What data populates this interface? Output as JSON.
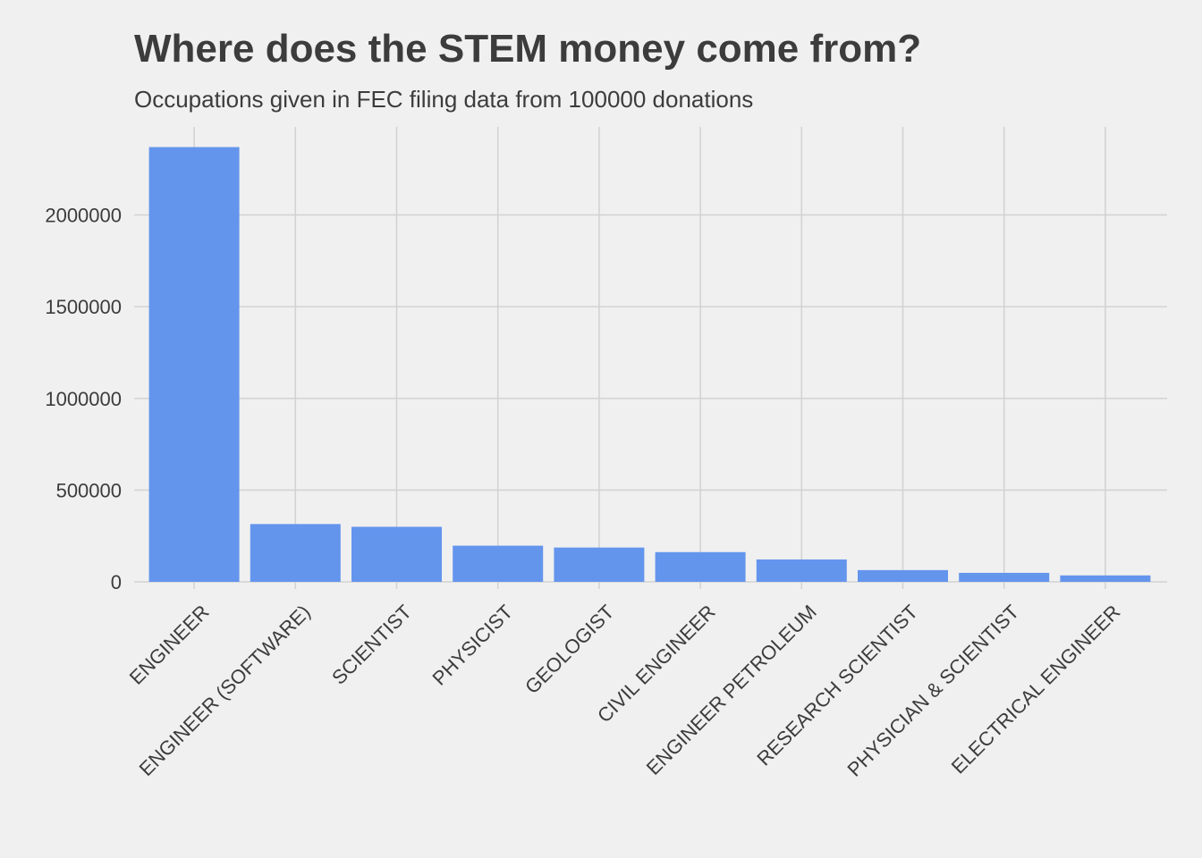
{
  "title": "Where does the STEM money come from?",
  "subtitle": "Occupations given in FEC filing data from 100000 donations",
  "colors": {
    "background": "#f0f0f0",
    "bar": "#6495ed",
    "grid": "#d2d2d2",
    "text": "#3c3c3c"
  },
  "chart_data": {
    "type": "bar",
    "title": "Where does the STEM money come from?",
    "subtitle": "Occupations given in FEC filing data from 100000 donations",
    "xlabel": "",
    "ylabel": "",
    "categories": [
      "ENGINEER",
      "ENGINEER (SOFTWARE)",
      "SCIENTIST",
      "PHYSICIST",
      "GEOLOGIST",
      "CIVIL ENGINEER",
      "ENGINEER PETROLEUM",
      "RESEARCH SCIENTIST",
      "PHYSICIAN & SCIENTIST",
      "ELECTRICAL ENGINEER"
    ],
    "values": [
      2370000,
      315000,
      300000,
      197000,
      187000,
      162000,
      122000,
      64000,
      49000,
      35000
    ],
    "y_ticks": [
      0,
      500000,
      1000000,
      1500000,
      2000000
    ],
    "y_tick_labels": [
      "0",
      "500000",
      "1000000",
      "1500000",
      "2000000"
    ],
    "ylim": [
      0,
      2480000
    ],
    "grid": true,
    "legend": "none",
    "x_tick_rotation": -45
  }
}
